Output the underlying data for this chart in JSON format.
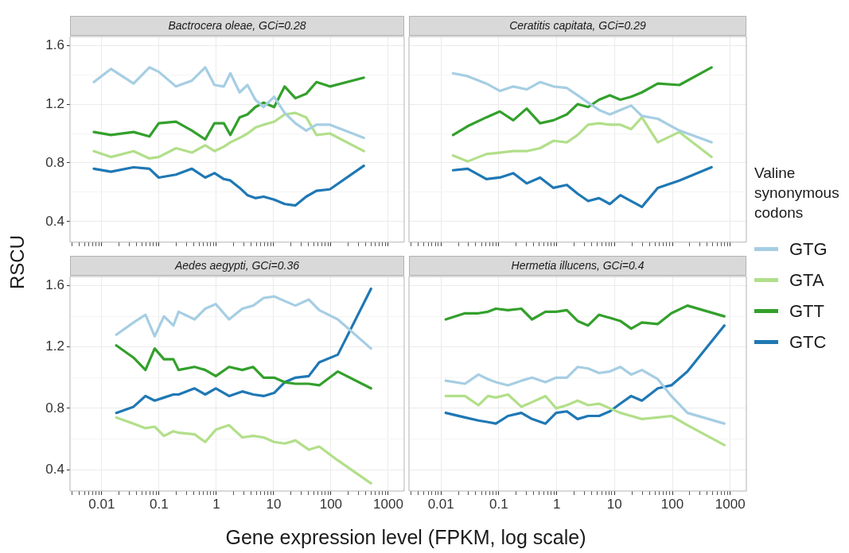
{
  "chart_data": [
    {
      "type": "line",
      "title": "Bactrocera oleae, GCi=0.28",
      "legend": "right",
      "legend_title": "Valine synonymous codons",
      "ylabel": "RSCU",
      "xlabel": "Gene expression level (FPKM, log scale)",
      "log": "x",
      "grid": true,
      "tick_labels": "y",
      "xlim": [
        0.0028,
        1900
      ],
      "ylim": [
        0.26,
        1.66
      ],
      "xticks": [
        {
          "value": 0.003,
          "label": null
        },
        {
          "value": 0.004,
          "label": null
        },
        {
          "value": 0.005,
          "label": null
        },
        {
          "value": 0.006,
          "label": null
        },
        {
          "value": 0.007,
          "label": null
        },
        {
          "value": 0.008,
          "label": null
        },
        {
          "value": 0.009,
          "label": null
        },
        0.01,
        {
          "value": 0.02,
          "label": null
        },
        {
          "value": 0.03,
          "label": null
        },
        {
          "value": 0.04,
          "label": null
        },
        {
          "value": 0.05,
          "label": null
        },
        {
          "value": 0.06,
          "label": null
        },
        {
          "value": 0.07,
          "label": null
        },
        {
          "value": 0.08,
          "label": null
        },
        {
          "value": 0.09,
          "label": null
        },
        0.1,
        {
          "value": 0.2,
          "label": null
        },
        {
          "value": 0.3,
          "label": null
        },
        {
          "value": 0.4,
          "label": null
        },
        {
          "value": 0.5,
          "label": null
        },
        {
          "value": 0.6,
          "label": null
        },
        {
          "value": 0.7,
          "label": null
        },
        {
          "value": 0.8,
          "label": null
        },
        {
          "value": 0.9,
          "label": null
        },
        1,
        {
          "value": 2,
          "label": null
        },
        {
          "value": 3,
          "label": null
        },
        {
          "value": 4,
          "label": null
        },
        {
          "value": 5,
          "label": null
        },
        {
          "value": 6,
          "label": null
        },
        {
          "value": 7,
          "label": null
        },
        {
          "value": 8,
          "label": null
        },
        {
          "value": 9,
          "label": null
        },
        10,
        {
          "value": 20,
          "label": null
        },
        {
          "value": 30,
          "label": null
        },
        {
          "value": 40,
          "label": null
        },
        {
          "value": 50,
          "label": null
        },
        {
          "value": 60,
          "label": null
        },
        {
          "value": 70,
          "label": null
        },
        {
          "value": 80,
          "label": null
        },
        {
          "value": 90,
          "label": null
        },
        100,
        {
          "value": 200,
          "label": null
        },
        {
          "value": 300,
          "label": null
        },
        {
          "value": 400,
          "label": null
        },
        {
          "value": 500,
          "label": null
        },
        {
          "value": 600,
          "label": null
        },
        {
          "value": 700,
          "label": null
        },
        {
          "value": 800,
          "label": null
        },
        {
          "value": 900,
          "label": null
        },
        1000
      ],
      "yticks": [
        0.4,
        {
          "value": 0.6,
          "label": null
        },
        0.8,
        {
          "value": 1.0,
          "label": null
        },
        1.2,
        {
          "value": 1.4,
          "label": null
        },
        1.6
      ],
      "x": [
        0.0073,
        0.0145,
        0.036,
        0.068,
        0.099,
        0.198,
        0.375,
        0.64,
        0.93,
        1.35,
        1.76,
        2.55,
        3.5,
        4.8,
        6.7,
        10.2,
        15.6,
        24,
        37,
        56,
        96,
        375
      ],
      "series": [
        {
          "name": "GTG",
          "color": "#a6cee3",
          "values": [
            1.35,
            1.44,
            1.34,
            1.45,
            1.42,
            1.32,
            1.36,
            1.45,
            1.33,
            1.32,
            1.41,
            1.28,
            1.33,
            1.23,
            1.18,
            1.25,
            1.14,
            1.07,
            1.02,
            1.06,
            1.06,
            0.97
          ]
        },
        {
          "name": "GTA",
          "color": "#b2df8a",
          "values": [
            0.88,
            0.84,
            0.88,
            0.83,
            0.84,
            0.9,
            0.87,
            0.92,
            0.88,
            0.91,
            0.94,
            0.97,
            1.0,
            1.04,
            1.06,
            1.08,
            1.13,
            1.14,
            1.11,
            0.99,
            1.0,
            0.88
          ]
        },
        {
          "name": "GTT",
          "color": "#33a02c",
          "values": [
            1.01,
            0.99,
            1.01,
            0.98,
            1.07,
            1.08,
            1.02,
            0.96,
            1.07,
            1.07,
            0.99,
            1.11,
            1.13,
            1.18,
            1.21,
            1.18,
            1.32,
            1.24,
            1.27,
            1.35,
            1.32,
            1.38
          ]
        },
        {
          "name": "GTC",
          "color": "#1f78b4",
          "values": [
            0.76,
            0.74,
            0.77,
            0.76,
            0.7,
            0.72,
            0.76,
            0.7,
            0.73,
            0.69,
            0.68,
            0.63,
            0.58,
            0.56,
            0.57,
            0.55,
            0.52,
            0.51,
            0.57,
            0.61,
            0.62,
            0.78
          ]
        }
      ]
    },
    {
      "type": "line",
      "title": "Ceratitis capitata, GCi=0.29",
      "log": "x",
      "grid": true,
      "tick_labels": false,
      "xlim": [
        0.0028,
        1900
      ],
      "ylim": [
        0.26,
        1.66
      ],
      "xticks": [
        {
          "value": 0.003,
          "label": null
        },
        {
          "value": 0.004,
          "label": null
        },
        {
          "value": 0.005,
          "label": null
        },
        {
          "value": 0.006,
          "label": null
        },
        {
          "value": 0.007,
          "label": null
        },
        {
          "value": 0.008,
          "label": null
        },
        {
          "value": 0.009,
          "label": null
        },
        0.01,
        {
          "value": 0.02,
          "label": null
        },
        {
          "value": 0.03,
          "label": null
        },
        {
          "value": 0.04,
          "label": null
        },
        {
          "value": 0.05,
          "label": null
        },
        {
          "value": 0.06,
          "label": null
        },
        {
          "value": 0.07,
          "label": null
        },
        {
          "value": 0.08,
          "label": null
        },
        {
          "value": 0.09,
          "label": null
        },
        0.1,
        {
          "value": 0.2,
          "label": null
        },
        {
          "value": 0.3,
          "label": null
        },
        {
          "value": 0.4,
          "label": null
        },
        {
          "value": 0.5,
          "label": null
        },
        {
          "value": 0.6,
          "label": null
        },
        {
          "value": 0.7,
          "label": null
        },
        {
          "value": 0.8,
          "label": null
        },
        {
          "value": 0.9,
          "label": null
        },
        1,
        {
          "value": 2,
          "label": null
        },
        {
          "value": 3,
          "label": null
        },
        {
          "value": 4,
          "label": null
        },
        {
          "value": 5,
          "label": null
        },
        {
          "value": 6,
          "label": null
        },
        {
          "value": 7,
          "label": null
        },
        {
          "value": 8,
          "label": null
        },
        {
          "value": 9,
          "label": null
        },
        10,
        {
          "value": 20,
          "label": null
        },
        {
          "value": 30,
          "label": null
        },
        {
          "value": 40,
          "label": null
        },
        {
          "value": 50,
          "label": null
        },
        {
          "value": 60,
          "label": null
        },
        {
          "value": 70,
          "label": null
        },
        {
          "value": 80,
          "label": null
        },
        {
          "value": 90,
          "label": null
        },
        100,
        {
          "value": 200,
          "label": null
        },
        {
          "value": 300,
          "label": null
        },
        {
          "value": 400,
          "label": null
        },
        {
          "value": 500,
          "label": null
        },
        {
          "value": 600,
          "label": null
        },
        {
          "value": 700,
          "label": null
        },
        {
          "value": 800,
          "label": null
        },
        {
          "value": 900,
          "label": null
        },
        1000
      ],
      "yticks": [
        0.4,
        {
          "value": 0.6,
          "label": null
        },
        0.8,
        {
          "value": 1.0,
          "label": null
        },
        1.2,
        {
          "value": 1.4,
          "label": null
        },
        1.6
      ],
      "x": [
        0.0162,
        0.029,
        0.061,
        0.104,
        0.178,
        0.303,
        0.516,
        0.88,
        1.5,
        2.3,
        3.5,
        5.4,
        8.3,
        12.6,
        19.4,
        29.7,
        56,
        132,
        475
      ],
      "series": [
        {
          "name": "GTG",
          "color": "#a6cee3",
          "values": [
            1.41,
            1.39,
            1.34,
            1.29,
            1.32,
            1.3,
            1.35,
            1.32,
            1.31,
            1.26,
            1.21,
            1.16,
            1.13,
            1.16,
            1.19,
            1.12,
            1.1,
            1.02,
            0.94
          ]
        },
        {
          "name": "GTA",
          "color": "#b2df8a",
          "values": [
            0.85,
            0.81,
            0.86,
            0.87,
            0.88,
            0.88,
            0.9,
            0.95,
            0.94,
            0.99,
            1.06,
            1.07,
            1.06,
            1.06,
            1.03,
            1.11,
            0.94,
            1.01,
            0.84
          ]
        },
        {
          "name": "GTT",
          "color": "#33a02c",
          "values": [
            0.99,
            1.05,
            1.11,
            1.15,
            1.09,
            1.17,
            1.07,
            1.09,
            1.13,
            1.2,
            1.18,
            1.23,
            1.26,
            1.23,
            1.25,
            1.28,
            1.34,
            1.33,
            1.45
          ]
        },
        {
          "name": "GTC",
          "color": "#1f78b4",
          "values": [
            0.75,
            0.76,
            0.69,
            0.7,
            0.73,
            0.66,
            0.7,
            0.63,
            0.65,
            0.59,
            0.54,
            0.56,
            0.52,
            0.58,
            0.54,
            0.5,
            0.63,
            0.68,
            0.77
          ]
        }
      ]
    },
    {
      "type": "line",
      "title": "Aedes aegypti, GCi=0.36",
      "log": "x",
      "grid": true,
      "xlim": [
        0.0028,
        1900
      ],
      "ylim": [
        0.26,
        1.66
      ],
      "xticks": [
        {
          "value": 0.003,
          "label": null
        },
        {
          "value": 0.004,
          "label": null
        },
        {
          "value": 0.005,
          "label": null
        },
        {
          "value": 0.006,
          "label": null
        },
        {
          "value": 0.007,
          "label": null
        },
        {
          "value": 0.008,
          "label": null
        },
        {
          "value": 0.009,
          "label": null
        },
        0.01,
        {
          "value": 0.02,
          "label": null
        },
        {
          "value": 0.03,
          "label": null
        },
        {
          "value": 0.04,
          "label": null
        },
        {
          "value": 0.05,
          "label": null
        },
        {
          "value": 0.06,
          "label": null
        },
        {
          "value": 0.07,
          "label": null
        },
        {
          "value": 0.08,
          "label": null
        },
        {
          "value": 0.09,
          "label": null
        },
        0.1,
        {
          "value": 0.2,
          "label": null
        },
        {
          "value": 0.3,
          "label": null
        },
        {
          "value": 0.4,
          "label": null
        },
        {
          "value": 0.5,
          "label": null
        },
        {
          "value": 0.6,
          "label": null
        },
        {
          "value": 0.7,
          "label": null
        },
        {
          "value": 0.8,
          "label": null
        },
        {
          "value": 0.9,
          "label": null
        },
        1,
        {
          "value": 2,
          "label": null
        },
        {
          "value": 3,
          "label": null
        },
        {
          "value": 4,
          "label": null
        },
        {
          "value": 5,
          "label": null
        },
        {
          "value": 6,
          "label": null
        },
        {
          "value": 7,
          "label": null
        },
        {
          "value": 8,
          "label": null
        },
        {
          "value": 9,
          "label": null
        },
        10,
        {
          "value": 20,
          "label": null
        },
        {
          "value": 30,
          "label": null
        },
        {
          "value": 40,
          "label": null
        },
        {
          "value": 50,
          "label": null
        },
        {
          "value": 60,
          "label": null
        },
        {
          "value": 70,
          "label": null
        },
        {
          "value": 80,
          "label": null
        },
        {
          "value": 90,
          "label": null
        },
        100,
        {
          "value": 200,
          "label": null
        },
        {
          "value": 300,
          "label": null
        },
        {
          "value": 400,
          "label": null
        },
        {
          "value": 500,
          "label": null
        },
        {
          "value": 600,
          "label": null
        },
        {
          "value": 700,
          "label": null
        },
        {
          "value": 800,
          "label": null
        },
        {
          "value": 900,
          "label": null
        },
        1000
      ],
      "yticks": [
        0.4,
        {
          "value": 0.6,
          "label": null
        },
        0.8,
        {
          "value": 1.0,
          "label": null
        },
        1.2,
        {
          "value": 1.4,
          "label": null
        },
        1.6
      ],
      "x": [
        0.018,
        0.036,
        0.058,
        0.084,
        0.122,
        0.178,
        0.22,
        0.417,
        0.64,
        0.98,
        1.67,
        2.84,
        4.4,
        6.7,
        10.2,
        15.6,
        24,
        41,
        62.5,
        132,
        500
      ],
      "series": [
        {
          "name": "GTG",
          "color": "#a6cee3",
          "values": [
            1.28,
            1.36,
            1.41,
            1.27,
            1.4,
            1.34,
            1.43,
            1.38,
            1.45,
            1.48,
            1.38,
            1.45,
            1.47,
            1.52,
            1.53,
            1.5,
            1.47,
            1.51,
            1.44,
            1.38,
            1.19
          ]
        },
        {
          "name": "GTA",
          "color": "#b2df8a",
          "values": [
            0.74,
            0.7,
            0.67,
            0.68,
            0.62,
            0.65,
            0.64,
            0.63,
            0.58,
            0.66,
            0.69,
            0.61,
            0.62,
            0.61,
            0.58,
            0.57,
            0.59,
            0.53,
            0.55,
            0.46,
            0.31
          ]
        },
        {
          "name": "GTT",
          "color": "#33a02c",
          "values": [
            1.21,
            1.13,
            1.05,
            1.19,
            1.12,
            1.12,
            1.05,
            1.07,
            1.05,
            1.01,
            1.07,
            1.05,
            1.07,
            1.0,
            1.0,
            0.97,
            0.96,
            0.96,
            0.95,
            1.04,
            0.93
          ]
        },
        {
          "name": "GTC",
          "color": "#1f78b4",
          "values": [
            0.77,
            0.81,
            0.88,
            0.85,
            0.87,
            0.89,
            0.89,
            0.93,
            0.89,
            0.93,
            0.88,
            0.91,
            0.89,
            0.88,
            0.9,
            0.97,
            1.0,
            1.01,
            1.1,
            1.15,
            1.58
          ]
        }
      ]
    },
    {
      "type": "line",
      "title": "Hermetia illucens, GCi=0.4",
      "log": "x",
      "grid": true,
      "tick_labels": "x",
      "xlim": [
        0.0028,
        1900
      ],
      "ylim": [
        0.26,
        1.66
      ],
      "xticks": [
        {
          "value": 0.003,
          "label": null
        },
        {
          "value": 0.004,
          "label": null
        },
        {
          "value": 0.005,
          "label": null
        },
        {
          "value": 0.006,
          "label": null
        },
        {
          "value": 0.007,
          "label": null
        },
        {
          "value": 0.008,
          "label": null
        },
        {
          "value": 0.009,
          "label": null
        },
        0.01,
        {
          "value": 0.02,
          "label": null
        },
        {
          "value": 0.03,
          "label": null
        },
        {
          "value": 0.04,
          "label": null
        },
        {
          "value": 0.05,
          "label": null
        },
        {
          "value": 0.06,
          "label": null
        },
        {
          "value": 0.07,
          "label": null
        },
        {
          "value": 0.08,
          "label": null
        },
        {
          "value": 0.09,
          "label": null
        },
        0.1,
        {
          "value": 0.2,
          "label": null
        },
        {
          "value": 0.3,
          "label": null
        },
        {
          "value": 0.4,
          "label": null
        },
        {
          "value": 0.5,
          "label": null
        },
        {
          "value": 0.6,
          "label": null
        },
        {
          "value": 0.7,
          "label": null
        },
        {
          "value": 0.8,
          "label": null
        },
        {
          "value": 0.9,
          "label": null
        },
        1,
        {
          "value": 2,
          "label": null
        },
        {
          "value": 3,
          "label": null
        },
        {
          "value": 4,
          "label": null
        },
        {
          "value": 5,
          "label": null
        },
        {
          "value": 6,
          "label": null
        },
        {
          "value": 7,
          "label": null
        },
        {
          "value": 8,
          "label": null
        },
        {
          "value": 9,
          "label": null
        },
        10,
        {
          "value": 20,
          "label": null
        },
        {
          "value": 30,
          "label": null
        },
        {
          "value": 40,
          "label": null
        },
        {
          "value": 50,
          "label": null
        },
        {
          "value": 60,
          "label": null
        },
        {
          "value": 70,
          "label": null
        },
        {
          "value": 80,
          "label": null
        },
        {
          "value": 90,
          "label": null
        },
        100,
        {
          "value": 200,
          "label": null
        },
        {
          "value": 300,
          "label": null
        },
        {
          "value": 400,
          "label": null
        },
        {
          "value": 500,
          "label": null
        },
        {
          "value": 600,
          "label": null
        },
        {
          "value": 700,
          "label": null
        },
        {
          "value": 800,
          "label": null
        },
        {
          "value": 900,
          "label": null
        },
        1000
      ],
      "yticks": [
        0.4,
        {
          "value": 0.6,
          "label": null
        },
        0.8,
        {
          "value": 1.0,
          "label": null
        },
        1.2,
        {
          "value": 1.4,
          "label": null
        },
        1.6
      ],
      "x": [
        0.0121,
        0.026,
        0.0445,
        0.065,
        0.089,
        0.144,
        0.245,
        0.375,
        0.64,
        0.98,
        1.5,
        2.3,
        3.5,
        5.4,
        8.3,
        12.6,
        19.4,
        29.7,
        56,
        96,
        182,
        790
      ],
      "series": [
        {
          "name": "GTG",
          "color": "#a6cee3",
          "values": [
            0.98,
            0.96,
            1.02,
            0.99,
            0.97,
            0.95,
            0.98,
            1.0,
            0.97,
            1.0,
            1.0,
            1.07,
            1.06,
            1.03,
            1.04,
            1.07,
            1.02,
            1.05,
            0.99,
            0.88,
            0.77,
            0.7
          ]
        },
        {
          "name": "GTA",
          "color": "#b2df8a",
          "values": [
            0.88,
            0.88,
            0.82,
            0.88,
            0.87,
            0.89,
            0.81,
            0.84,
            0.88,
            0.8,
            0.82,
            0.85,
            0.82,
            0.83,
            0.8,
            0.77,
            0.75,
            0.73,
            0.74,
            0.75,
            0.69,
            0.56
          ]
        },
        {
          "name": "GTT",
          "color": "#33a02c",
          "values": [
            1.38,
            1.42,
            1.42,
            1.43,
            1.45,
            1.44,
            1.45,
            1.38,
            1.43,
            1.43,
            1.44,
            1.37,
            1.34,
            1.41,
            1.39,
            1.37,
            1.32,
            1.36,
            1.35,
            1.42,
            1.47,
            1.4
          ]
        },
        {
          "name": "GTC",
          "color": "#1f78b4",
          "values": [
            0.77,
            0.74,
            0.72,
            0.71,
            0.7,
            0.75,
            0.77,
            0.73,
            0.7,
            0.77,
            0.78,
            0.73,
            0.75,
            0.75,
            0.78,
            0.83,
            0.88,
            0.85,
            0.93,
            0.95,
            1.04,
            1.34
          ]
        }
      ]
    }
  ]
}
